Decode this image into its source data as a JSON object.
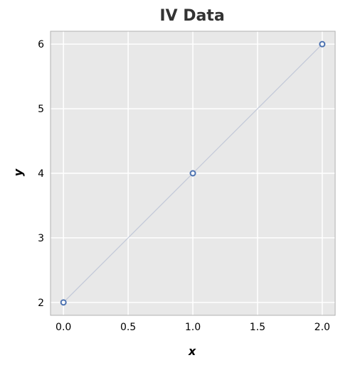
{
  "chart_data": {
    "type": "line",
    "title": "IV Data",
    "xlabel": "x",
    "ylabel": "y",
    "xlim": [
      -0.1,
      2.1
    ],
    "ylim": [
      1.8,
      6.2
    ],
    "xticks": [
      0.0,
      0.5,
      1.0,
      1.5,
      2.0
    ],
    "xtick_labels": [
      "0.0",
      "0.5",
      "1.0",
      "1.5",
      "2.0"
    ],
    "yticks": [
      2,
      3,
      4,
      5,
      6
    ],
    "ytick_labels": [
      "2",
      "3",
      "4",
      "5",
      "6"
    ],
    "grid": true,
    "series": [
      {
        "x": [
          0.0,
          1.0,
          2.0
        ],
        "y": [
          2,
          4,
          6
        ]
      }
    ],
    "colors": {
      "plot_background": "#e8e8e8",
      "grid": "#ffffff",
      "line": "#c2c8d8",
      "marker_edge": "#4c72b0",
      "frame": "#b0b0b0"
    }
  }
}
